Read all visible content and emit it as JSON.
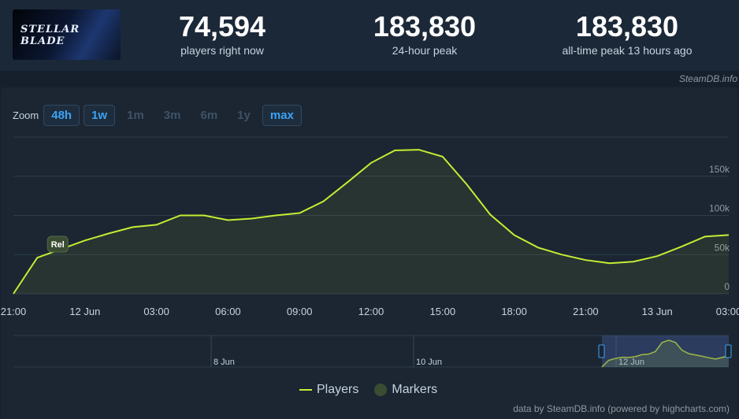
{
  "header": {
    "game_logo_text": "STELLAR BLADE",
    "stats": [
      {
        "value": "74,594",
        "label": "players right now"
      },
      {
        "value": "183,830",
        "label": "24-hour peak"
      },
      {
        "value": "183,830",
        "label": "all-time peak 13 hours ago"
      }
    ],
    "credit": "SteamDB.info"
  },
  "zoom": {
    "label": "Zoom",
    "buttons": [
      {
        "label": "48h",
        "active": true
      },
      {
        "label": "1w",
        "active": true
      },
      {
        "label": "1m",
        "active": false
      },
      {
        "label": "3m",
        "active": false
      },
      {
        "label": "6m",
        "active": false
      },
      {
        "label": "1y",
        "active": false
      },
      {
        "label": "max",
        "active": true
      }
    ]
  },
  "legend": {
    "players": "Players",
    "markers": "Markers"
  },
  "footer": {
    "credit": "data by SteamDB.info (powered by highcharts.com)"
  },
  "chart_data": {
    "type": "line",
    "series": [
      {
        "name": "Players",
        "color": "#c6ec33",
        "x": [
          0,
          1,
          2,
          3,
          4,
          5,
          6,
          7,
          8,
          9,
          10,
          11,
          12,
          13,
          14,
          15,
          16,
          17,
          18,
          19,
          20,
          21,
          22,
          23,
          24,
          25,
          26,
          27,
          28,
          29,
          30
        ],
        "values": [
          0,
          46000,
          57000,
          68000,
          77000,
          85000,
          88000,
          100000,
          100000,
          94000,
          96000,
          100000,
          103000,
          118000,
          142000,
          167000,
          183000,
          183830,
          175000,
          140000,
          101000,
          75000,
          59000,
          50000,
          43000,
          39000,
          41000,
          48000,
          60000,
          73000,
          75000
        ]
      }
    ],
    "x_ticks": [
      {
        "x": 0,
        "label": "21:00"
      },
      {
        "x": 3,
        "label": "12 Jun"
      },
      {
        "x": 6,
        "label": "03:00"
      },
      {
        "x": 9,
        "label": "06:00"
      },
      {
        "x": 12,
        "label": "09:00"
      },
      {
        "x": 15,
        "label": "12:00"
      },
      {
        "x": 18,
        "label": "15:00"
      },
      {
        "x": 21,
        "label": "18:00"
      },
      {
        "x": 24,
        "label": "21:00"
      },
      {
        "x": 27,
        "label": "13 Jun"
      },
      {
        "x": 30,
        "label": "03:00"
      }
    ],
    "y_ticks": [
      {
        "v": 0,
        "label": "0"
      },
      {
        "v": 50000,
        "label": "50k"
      },
      {
        "v": 100000,
        "label": "100k"
      },
      {
        "v": 150000,
        "label": "150k"
      }
    ],
    "ylim": [
      0,
      200000
    ],
    "marker": {
      "x": 1,
      "label": "Rel"
    },
    "navigator": {
      "labels": [
        "8 Jun",
        "10 Jun",
        "12 Jun"
      ],
      "values": [
        0,
        26000,
        33000,
        38000,
        37000,
        40000,
        48000,
        50000,
        60000,
        95000,
        104000,
        96000,
        65000,
        52000,
        47000,
        42000,
        36000,
        31000,
        37000,
        43000
      ]
    },
    "grid": true,
    "legend_position": "bottom-center"
  }
}
